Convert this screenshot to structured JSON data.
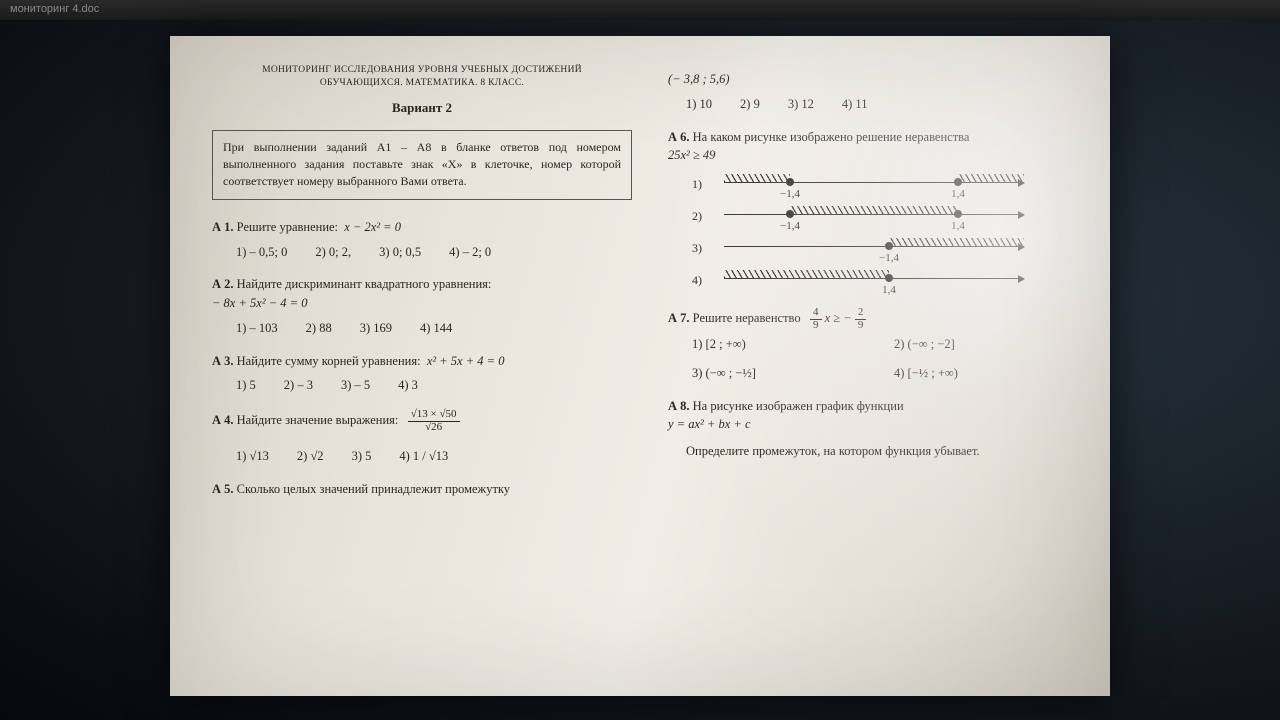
{
  "window_title": "мониторинг 4.doc",
  "header_line1": "МОНИТОРИНГ ИССЛЕДОВАНИЯ УРОВНЯ УЧЕБНЫХ ДОСТИЖЕНИЙ",
  "header_line2": "ОБУЧАЮЩИХСЯ. МАТЕМАТИКА. 8 КЛАСС.",
  "variant": "Вариант 2",
  "instructions": "При выполнении заданий А1 – А8 в бланке ответов под номером выполненного задания поставьте знак «Х» в клеточке, номер которой соответствует номеру выбранного Вами ответа.",
  "a1": {
    "label": "А 1.",
    "text": "Решите уравнение:",
    "eq": "x − 2x² = 0",
    "opts": [
      "1) – 0,5; 0",
      "2) 0; 2,",
      "3) 0; 0,5",
      "4) – 2; 0"
    ]
  },
  "a2": {
    "label": "А 2.",
    "text": "Найдите дискриминант квадратного уравнения:",
    "eq": "− 8x + 5x² − 4 = 0",
    "opts": [
      "1) – 103",
      "2) 88",
      "3) 169",
      "4) 144"
    ]
  },
  "a3": {
    "label": "А 3.",
    "text": "Найдите сумму корней уравнения:",
    "eq": "x² + 5x + 4 = 0",
    "opts": [
      "1) 5",
      "2) – 3",
      "3) – 5",
      "4) 3"
    ]
  },
  "a4": {
    "label": "А 4.",
    "text": "Найдите значение выражения:",
    "frac_top": "√13 × √50",
    "frac_bot": "√26",
    "opts": [
      "1) √13",
      "2) √2",
      "3) 5",
      "4) 1 / √13"
    ]
  },
  "a5": {
    "label": "А 5.",
    "text": "Сколько целых значений принадлежит промежутку",
    "interval": "(− 3,8 ; 5,6)",
    "opts": [
      "1) 10",
      "2) 9",
      "3) 12",
      "4) 11"
    ]
  },
  "a6": {
    "label": "А 6.",
    "text": "На каком рисунке изображено решение неравенства",
    "eq": "25x² ≥ 49",
    "lines": [
      {
        "n": "1)",
        "hatch": [
          [
            0,
            22
          ],
          [
            78,
            100
          ]
        ],
        "pts": [
          {
            "x": 22,
            "open": false,
            "lbl": "−1,4"
          },
          {
            "x": 78,
            "open": false,
            "lbl": "1,4"
          }
        ]
      },
      {
        "n": "2)",
        "hatch": [
          [
            22,
            78
          ]
        ],
        "pts": [
          {
            "x": 22,
            "open": false,
            "lbl": "−1,4"
          },
          {
            "x": 78,
            "open": false,
            "lbl": "1,4"
          }
        ]
      },
      {
        "n": "3)",
        "hatch": [
          [
            55,
            100
          ]
        ],
        "pts": [
          {
            "x": 55,
            "open": false,
            "lbl": "−1,4"
          }
        ]
      },
      {
        "n": "4)",
        "hatch": [
          [
            0,
            55
          ]
        ],
        "pts": [
          {
            "x": 55,
            "open": false,
            "lbl": "1,4"
          }
        ]
      }
    ]
  },
  "a7": {
    "label": "А 7.",
    "text_prefix": "Решите неравенство",
    "ineq_lhs_n1": "4",
    "ineq_lhs_d1": "9",
    "ineq_mid": " x ≥ −",
    "ineq_rhs_n": "2",
    "ineq_rhs_d": "9",
    "opts": [
      "1)  [2 ; +∞)",
      "2)  (−∞ ; −2]",
      "3)  (−∞ ; −½]",
      "4)  [−½ ; +∞)"
    ]
  },
  "a8": {
    "label": "А 8.",
    "line1": "На рисунке изображен график функции",
    "eq": "y = ax² + bx + c",
    "line2": "Определите промежуток, на котором функция убывает."
  },
  "colors": {
    "paper_text": "#2a2520",
    "paper_bg_light": "#f0ede6",
    "paper_bg_dark": "#cfc9bf",
    "frame_bg": "#0a0f14"
  }
}
